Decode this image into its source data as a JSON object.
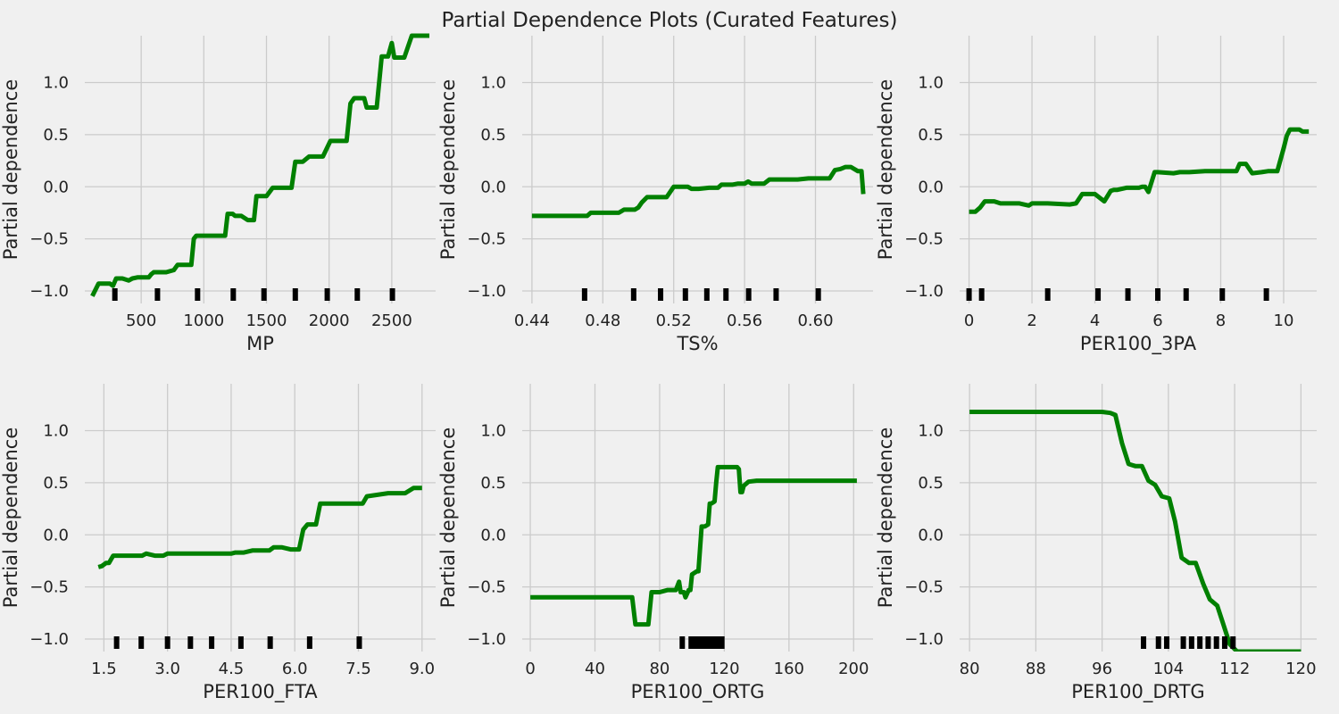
{
  "title": "Partial Dependence Plots (Curated Features)",
  "colors": {
    "line": "#008000",
    "grid": "#cbcbcb",
    "background": "#f0f0f0",
    "rug": "#000000"
  },
  "chart_data": [
    {
      "type": "line",
      "xlabel": "MP",
      "ylabel": "Partial dependence",
      "xlim": [
        50,
        2850
      ],
      "ylim": [
        -1.12,
        1.45
      ],
      "xticks": [
        500,
        1000,
        1500,
        2000,
        2500
      ],
      "xtick_labels": [
        "500",
        "1000",
        "1500",
        "2000",
        "2500"
      ],
      "yticks": [
        -1.0,
        -0.5,
        0.0,
        0.5,
        1.0
      ],
      "ytick_labels": [
        "−1.0",
        "−0.5",
        "0.0",
        "0.5",
        "1.0"
      ],
      "rug": [
        290,
        630,
        950,
        1235,
        1480,
        1730,
        1985,
        2225,
        2505
      ],
      "x": [
        110,
        160,
        250,
        275,
        300,
        350,
        400,
        430,
        470,
        560,
        580,
        600,
        640,
        700,
        760,
        790,
        800,
        850,
        900,
        920,
        940,
        1000,
        1100,
        1170,
        1190,
        1230,
        1250,
        1300,
        1350,
        1400,
        1420,
        1450,
        1500,
        1550,
        1590,
        1610,
        1650,
        1700,
        1730,
        1750,
        1790,
        1840,
        1900,
        1950,
        2010,
        2040,
        2080,
        2140,
        2170,
        2200,
        2280,
        2300,
        2330,
        2380,
        2420,
        2470,
        2500,
        2520,
        2550,
        2600,
        2660,
        2700,
        2760,
        2800
      ],
      "y": [
        -1.05,
        -0.93,
        -0.93,
        -0.95,
        -0.88,
        -0.88,
        -0.9,
        -0.88,
        -0.87,
        -0.87,
        -0.84,
        -0.82,
        -0.82,
        -0.82,
        -0.8,
        -0.75,
        -0.75,
        -0.75,
        -0.75,
        -0.5,
        -0.47,
        -0.47,
        -0.47,
        -0.47,
        -0.26,
        -0.26,
        -0.28,
        -0.28,
        -0.32,
        -0.32,
        -0.09,
        -0.09,
        -0.09,
        -0.01,
        -0.01,
        -0.01,
        -0.01,
        -0.01,
        0.24,
        0.24,
        0.24,
        0.29,
        0.29,
        0.29,
        0.44,
        0.44,
        0.44,
        0.44,
        0.8,
        0.85,
        0.85,
        0.76,
        0.76,
        0.76,
        1.25,
        1.25,
        1.38,
        1.24,
        1.24,
        1.24,
        1.45,
        1.45,
        1.45,
        1.45
      ]
    },
    {
      "type": "line",
      "xlabel": "TS%",
      "ylabel": "Partial dependence",
      "xlim": [
        0.4345,
        0.6325
      ],
      "ylim": [
        -1.12,
        1.45
      ],
      "xticks": [
        0.44,
        0.48,
        0.52,
        0.56,
        0.6
      ],
      "xtick_labels": [
        "0.44",
        "0.48",
        "0.52",
        "0.56",
        "0.60"
      ],
      "yticks": [
        -1.0,
        -0.5,
        0.0,
        0.5,
        1.0
      ],
      "ytick_labels": [
        "−1.0",
        "−0.5",
        "0.0",
        "0.5",
        "1.0"
      ],
      "rug": [
        0.4697,
        0.4974,
        0.5126,
        0.5266,
        0.5387,
        0.5495,
        0.5623,
        0.5778,
        0.6016
      ],
      "x": [
        0.44,
        0.465,
        0.465,
        0.4712,
        0.4732,
        0.477,
        0.479,
        0.485,
        0.489,
        0.492,
        0.496,
        0.498,
        0.5,
        0.502,
        0.505,
        0.515,
        0.516,
        0.52,
        0.523,
        0.528,
        0.53,
        0.534,
        0.54,
        0.545,
        0.547,
        0.553,
        0.556,
        0.56,
        0.562,
        0.564,
        0.568,
        0.571,
        0.574,
        0.58,
        0.584,
        0.59,
        0.596,
        0.601,
        0.604,
        0.608,
        0.611,
        0.614,
        0.617,
        0.62,
        0.624,
        0.626,
        0.627
      ],
      "y": [
        -0.28,
        -0.28,
        -0.28,
        -0.28,
        -0.25,
        -0.25,
        -0.25,
        -0.25,
        -0.25,
        -0.22,
        -0.22,
        -0.22,
        -0.2,
        -0.15,
        -0.1,
        -0.1,
        -0.1,
        0.0,
        0.0,
        0.0,
        -0.02,
        -0.02,
        -0.01,
        -0.01,
        0.02,
        0.02,
        0.03,
        0.03,
        0.05,
        0.03,
        0.03,
        0.03,
        0.07,
        0.07,
        0.07,
        0.07,
        0.08,
        0.08,
        0.08,
        0.08,
        0.16,
        0.17,
        0.19,
        0.19,
        0.15,
        0.15,
        -0.07
      ]
    },
    {
      "type": "line",
      "xlabel": "PER100_3PA",
      "ylabel": "Partial dependence",
      "xlim": [
        -0.3,
        11.05
      ],
      "ylim": [
        -1.12,
        1.45
      ],
      "xticks": [
        0,
        2,
        4,
        6,
        8,
        10
      ],
      "xtick_labels": [
        "0",
        "2",
        "4",
        "6",
        "8",
        "10"
      ],
      "yticks": [
        -1.0,
        -0.5,
        0.0,
        0.5,
        1.0
      ],
      "ytick_labels": [
        "−1.0",
        "−0.5",
        "0.0",
        "0.5",
        "1.0"
      ],
      "rug": [
        0.0,
        0.4,
        2.5,
        4.1,
        5.05,
        6.0,
        6.9,
        8.05,
        9.45
      ],
      "x": [
        0.0,
        0.2,
        0.35,
        0.5,
        0.8,
        1.0,
        1.6,
        1.9,
        2.0,
        2.5,
        3.2,
        3.4,
        3.6,
        3.8,
        4.0,
        4.3,
        4.5,
        4.6,
        4.7,
        5.0,
        5.4,
        5.5,
        5.6,
        5.7,
        5.9,
        6.0,
        6.5,
        6.7,
        7.0,
        7.5,
        8.0,
        8.5,
        8.6,
        8.8,
        9.0,
        9.3,
        9.5,
        9.8,
        10.0,
        10.1,
        10.2,
        10.5,
        10.6,
        10.8
      ],
      "y": [
        -0.24,
        -0.24,
        -0.2,
        -0.14,
        -0.14,
        -0.16,
        -0.16,
        -0.18,
        -0.16,
        -0.16,
        -0.17,
        -0.16,
        -0.07,
        -0.07,
        -0.07,
        -0.14,
        -0.04,
        -0.03,
        -0.03,
        -0.01,
        -0.01,
        0.0,
        0.0,
        -0.05,
        0.14,
        0.14,
        0.13,
        0.14,
        0.14,
        0.15,
        0.15,
        0.15,
        0.22,
        0.22,
        0.13,
        0.14,
        0.15,
        0.15,
        0.37,
        0.49,
        0.55,
        0.55,
        0.53,
        0.53
      ]
    },
    {
      "type": "line",
      "xlabel": "PER100_FTA",
      "ylabel": "Partial dependence",
      "xlim": [
        1.05,
        9.32
      ],
      "ylim": [
        -1.12,
        1.45
      ],
      "xticks": [
        1.5,
        3.0,
        4.5,
        6.0,
        7.5,
        9.0
      ],
      "xtick_labels": [
        "1.5",
        "3.0",
        "4.5",
        "6.0",
        "7.5",
        "9.0"
      ],
      "yticks": [
        -1.0,
        -0.5,
        0.0,
        0.5,
        1.0
      ],
      "ytick_labels": [
        "−1.0",
        "−0.5",
        "0.0",
        "0.5",
        "1.0"
      ],
      "rug": [
        1.8,
        2.38,
        3.0,
        3.54,
        4.04,
        4.73,
        5.42,
        6.35,
        7.52
      ],
      "x": [
        1.37,
        1.45,
        1.55,
        1.62,
        1.72,
        2.0,
        2.1,
        2.2,
        2.4,
        2.5,
        2.7,
        2.9,
        3.0,
        3.2,
        3.5,
        4.0,
        4.5,
        4.6,
        4.8,
        5.0,
        5.4,
        5.5,
        5.7,
        5.8,
        5.9,
        6.1,
        6.2,
        6.3,
        6.4,
        6.5,
        6.6,
        6.7,
        7.0,
        7.4,
        7.6,
        7.7,
        8.2,
        8.6,
        8.8,
        9.0
      ],
      "y": [
        -0.31,
        -0.3,
        -0.27,
        -0.27,
        -0.2,
        -0.2,
        -0.2,
        -0.2,
        -0.2,
        -0.18,
        -0.2,
        -0.2,
        -0.18,
        -0.18,
        -0.18,
        -0.18,
        -0.18,
        -0.17,
        -0.17,
        -0.15,
        -0.15,
        -0.12,
        -0.12,
        -0.13,
        -0.14,
        -0.14,
        0.05,
        0.1,
        0.1,
        0.1,
        0.3,
        0.3,
        0.3,
        0.3,
        0.3,
        0.37,
        0.4,
        0.4,
        0.45,
        0.45
      ]
    },
    {
      "type": "line",
      "xlabel": "PER100_ORTG",
      "ylabel": "Partial dependence",
      "xlim": [
        -5,
        212
      ],
      "ylim": [
        -1.12,
        1.45
      ],
      "xticks": [
        0,
        40,
        80,
        120,
        160,
        200
      ],
      "xtick_labels": [
        "0",
        "40",
        "80",
        "120",
        "160",
        "200"
      ],
      "yticks": [
        -1.0,
        -0.5,
        0.0,
        0.5,
        1.0
      ],
      "ytick_labels": [
        "−1.0",
        "−0.5",
        "0.0",
        "0.5",
        "1.0"
      ],
      "rug": [
        94,
        99.5,
        102,
        104,
        106,
        107.5,
        109,
        110.5,
        112,
        113.5,
        115,
        117,
        118.5
      ],
      "x": [
        0,
        20,
        40,
        55,
        62,
        63,
        65,
        70,
        73,
        75,
        80,
        85,
        88,
        90,
        92,
        93,
        95,
        96,
        98,
        99,
        100,
        103,
        104,
        106,
        108,
        110,
        111,
        112,
        114,
        115,
        116,
        118,
        120,
        124,
        128,
        129,
        130,
        131,
        132,
        135,
        140,
        150,
        160,
        180,
        202
      ],
      "y": [
        -0.6,
        -0.6,
        -0.6,
        -0.6,
        -0.6,
        -0.6,
        -0.86,
        -0.86,
        -0.86,
        -0.55,
        -0.55,
        -0.53,
        -0.53,
        -0.53,
        -0.45,
        -0.55,
        -0.55,
        -0.6,
        -0.53,
        -0.53,
        -0.38,
        -0.35,
        -0.35,
        0.08,
        0.08,
        0.1,
        0.3,
        0.3,
        0.32,
        0.5,
        0.65,
        0.65,
        0.65,
        0.65,
        0.65,
        0.63,
        0.41,
        0.41,
        0.47,
        0.51,
        0.52,
        0.52,
        0.52,
        0.52,
        0.52
      ]
    },
    {
      "type": "line",
      "xlabel": "PER100_DRTG",
      "ylabel": "Partial dependence",
      "xlim": [
        78.8,
        121.9
      ],
      "ylim": [
        -1.12,
        1.45
      ],
      "xticks": [
        80,
        88,
        96,
        104,
        112,
        120
      ],
      "xtick_labels": [
        "80",
        "88",
        "96",
        "104",
        "112",
        "120"
      ],
      "yticks": [
        -1.0,
        -0.5,
        0.0,
        0.5,
        1.0
      ],
      "ytick_labels": [
        "−1.0",
        "−0.5",
        "0.0",
        "0.5",
        "1.0"
      ],
      "rug": [
        101,
        102.8,
        103.8,
        105.8,
        106.8,
        107.8,
        108.8,
        109.8,
        110.8,
        111.8
      ],
      "x": [
        80,
        90,
        96,
        97,
        97.6,
        98.4,
        99.2,
        100,
        100.8,
        101.6,
        102.4,
        103.2,
        104.1,
        104.8,
        105.6,
        106.5,
        107.3,
        108.2,
        109.0,
        109.9,
        110.6,
        111.4,
        112.3,
        113.1,
        114,
        115,
        116,
        117,
        120
      ],
      "y": [
        1.18,
        1.18,
        1.18,
        1.17,
        1.15,
        0.88,
        0.68,
        0.66,
        0.66,
        0.52,
        0.48,
        0.37,
        0.35,
        0.13,
        -0.22,
        -0.27,
        -0.27,
        -0.47,
        -0.62,
        -0.68,
        -0.85,
        -1.05,
        -1.12,
        -1.12,
        -1.12,
        -1.12,
        -1.12,
        -1.12,
        -1.12
      ]
    }
  ]
}
